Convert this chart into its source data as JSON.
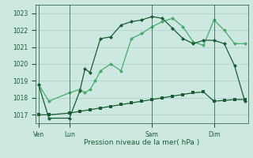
{
  "background_color": "#cce8e0",
  "grid_color": "#aacccc",
  "line_color_dark": "#1a5c32",
  "line_color_mid": "#2e7d4f",
  "line_color_light": "#4aaa6a",
  "ylabel": "Pression niveau de la mer( hPa )",
  "ylim": [
    1016.5,
    1023.5
  ],
  "yticks": [
    1017,
    1018,
    1019,
    1020,
    1021,
    1022,
    1023
  ],
  "day_labels": [
    "Ven",
    "Lun",
    "Sam",
    "Dim"
  ],
  "day_positions": [
    0,
    3,
    11,
    17
  ],
  "xlim": [
    -0.3,
    20.3
  ],
  "series1_x": [
    0,
    1,
    3,
    4,
    4.5,
    5,
    5.5,
    6,
    7,
    8,
    9,
    10,
    11,
    12,
    13,
    14,
    15,
    16,
    17,
    18,
    19,
    20
  ],
  "series1_y": [
    1018.8,
    1017.8,
    1018.3,
    1018.5,
    1018.3,
    1018.5,
    1019.0,
    1019.6,
    1020.0,
    1019.6,
    1021.5,
    1021.8,
    1022.2,
    1022.5,
    1022.7,
    1022.2,
    1021.3,
    1021.1,
    1022.6,
    1022.0,
    1021.2,
    1021.2
  ],
  "series2_x": [
    0,
    1,
    3,
    4,
    4.5,
    5,
    6,
    7,
    8,
    9,
    10,
    11,
    12,
    13,
    14,
    15,
    16,
    17,
    18,
    19,
    20
  ],
  "series2_y": [
    1018.8,
    1016.8,
    1016.8,
    1018.4,
    1019.7,
    1019.5,
    1021.5,
    1021.6,
    1022.3,
    1022.5,
    1022.6,
    1022.8,
    1022.7,
    1022.1,
    1021.5,
    1021.2,
    1021.4,
    1021.4,
    1021.2,
    1019.9,
    1017.8
  ],
  "series3_x": [
    0,
    1,
    3,
    4,
    5,
    6,
    7,
    8,
    9,
    10,
    11,
    12,
    13,
    14,
    15,
    16,
    17,
    18,
    19,
    20
  ],
  "series3_y": [
    1017.0,
    1017.0,
    1017.1,
    1017.2,
    1017.3,
    1017.4,
    1017.5,
    1017.6,
    1017.7,
    1017.8,
    1017.9,
    1018.0,
    1018.1,
    1018.2,
    1018.3,
    1018.35,
    1017.8,
    1017.85,
    1017.9,
    1017.9
  ],
  "tick_fontsize": 5.5,
  "xlabel_fontsize": 6.5,
  "marker_size": 2.5
}
